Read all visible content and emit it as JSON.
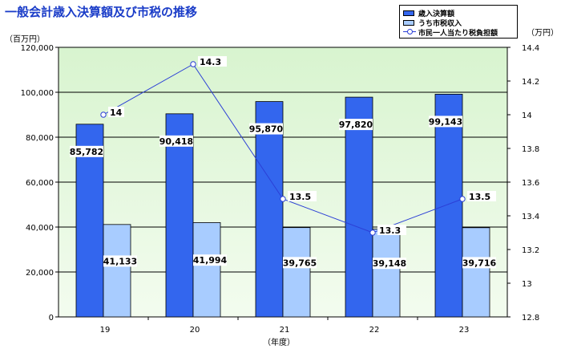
{
  "title": "一般会計歳入決算額及び市税の推移",
  "unit_left": "（百万円）",
  "unit_right": "（万円）",
  "colors": {
    "bg_top": "#d8f4cf",
    "bg_bottom": "#f3fcef",
    "bar_revenue": "#3366ee",
    "bar_tax": "#a8ccff",
    "line": "#2b3fd6",
    "title": "#1a3cc8"
  },
  "legend": [
    {
      "label": "歳入決算額",
      "kind": "bar",
      "color": "#3366ee"
    },
    {
      "label": "うち市税収入",
      "kind": "bar",
      "color": "#a8ccff"
    },
    {
      "label": "市民一人当たり税負担額",
      "kind": "line",
      "color": "#2b3fd6"
    }
  ],
  "chart_data": {
    "type": "bar",
    "title": "一般会計歳入決算額及び市税の推移",
    "xlabel": "（年度）",
    "ylabel": "（百万円）",
    "y2label": "（万円）",
    "categories": [
      "19",
      "20",
      "21",
      "22",
      "23"
    ],
    "series": [
      {
        "name": "歳入決算額",
        "type": "bar",
        "axis": "left",
        "values": [
          85782,
          90418,
          95870,
          97820,
          99143
        ],
        "labels": [
          "85,782",
          "90,418",
          "95,870",
          "97,820",
          "99,143"
        ]
      },
      {
        "name": "うち市税収入",
        "type": "bar",
        "axis": "left",
        "values": [
          41133,
          41994,
          39765,
          39148,
          39716
        ],
        "labels": [
          "41,133",
          "41,994",
          "39,765",
          "39,148",
          "39,716"
        ]
      },
      {
        "name": "市民一人当たり税負担額",
        "type": "line",
        "axis": "right",
        "values": [
          14,
          14.3,
          13.5,
          13.3,
          13.5
        ],
        "labels": [
          "14",
          "14.3",
          "13.5",
          "13.3",
          "13.5"
        ]
      }
    ],
    "ylim": [
      0,
      120000
    ],
    "yticks": [
      "0",
      "20,000",
      "40,000",
      "60,000",
      "80,000",
      "100,000",
      "120,000"
    ],
    "ytick_values": [
      0,
      20000,
      40000,
      60000,
      80000,
      100000,
      120000
    ],
    "y2lim": [
      12.8,
      14.4
    ],
    "y2ticks": [
      "12.8",
      "13",
      "13.2",
      "13.4",
      "13.6",
      "13.8",
      "14",
      "14.2",
      "14.4"
    ],
    "y2tick_values": [
      12.8,
      13,
      13.2,
      13.4,
      13.6,
      13.8,
      14,
      14.2,
      14.4
    ],
    "grid": true,
    "legend_position": "top-right"
  }
}
